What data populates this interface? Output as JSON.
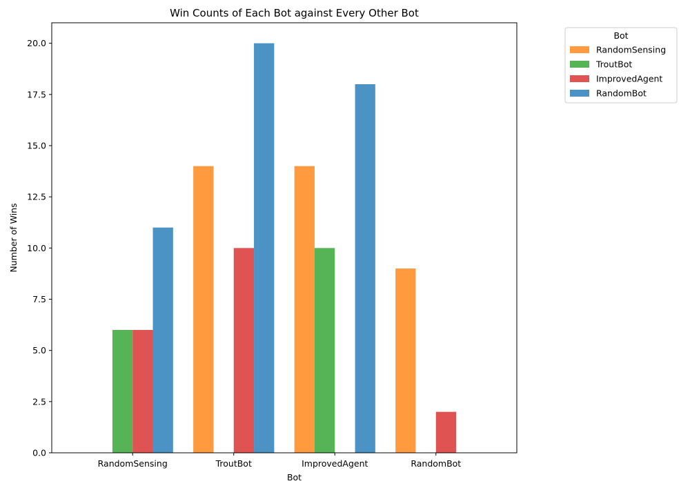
{
  "chart_data": {
    "type": "bar",
    "title": "Win Counts of Each Bot against Every Other Bot",
    "xlabel": "Bot",
    "ylabel": "Number of Wins",
    "categories": [
      "RandomSensing",
      "TroutBot",
      "ImprovedAgent",
      "RandomBot"
    ],
    "ylim": [
      0,
      21
    ],
    "yticks": [
      0.0,
      2.5,
      5.0,
      7.5,
      10.0,
      12.5,
      15.0,
      17.5,
      20.0
    ],
    "yticks_text": [
      "0.0",
      "2.5",
      "5.0",
      "7.5",
      "10.0",
      "12.5",
      "15.0",
      "17.5",
      "20.0"
    ],
    "grid": false,
    "legend": {
      "title": "Bot",
      "placement": "outside-top-right"
    },
    "series": [
      {
        "name": "RandomSensing",
        "color": "#ff9a3f",
        "values": [
          0,
          14,
          14,
          9
        ]
      },
      {
        "name": "TroutBot",
        "color": "#56b456",
        "values": [
          6,
          0,
          10,
          0
        ]
      },
      {
        "name": "ImprovedAgent",
        "color": "#df5353",
        "values": [
          6,
          10,
          0,
          2
        ]
      },
      {
        "name": "RandomBot",
        "color": "#4b93c4",
        "values": [
          11,
          20,
          18,
          0
        ]
      }
    ]
  }
}
